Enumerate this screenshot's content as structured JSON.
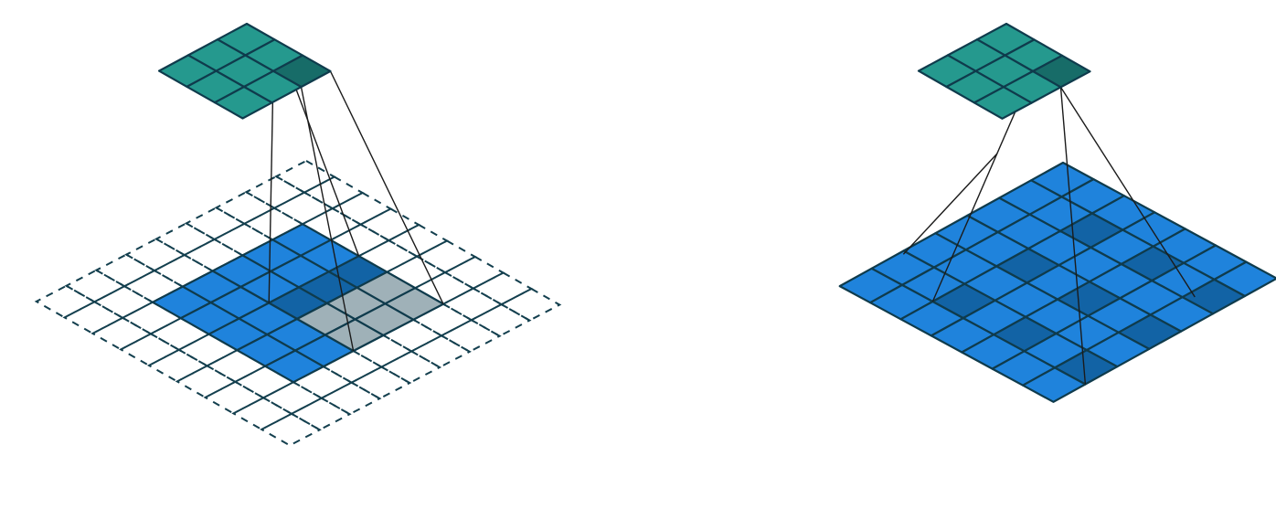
{
  "colors": {
    "teal_cell": "#25998e",
    "teal_highlight": "#176c68",
    "blue_cell": "#1f83dc",
    "blue_highlight": "#1263a5",
    "gray_cell": "#9fb1b8",
    "grid_line": "#0f3b4c",
    "dashed_line": "#133f4e",
    "projection_line": "#1b1b1b",
    "background": "#ffffff"
  },
  "panels": [
    {
      "name": "padded-convolution",
      "output_grid": {
        "rows": 3,
        "cols": 3,
        "highlight": [
          [
            0,
            2
          ]
        ]
      },
      "input_grid": {
        "rows": 5,
        "cols": 5,
        "padding": 2
      },
      "kernel": {
        "size": 3,
        "row": 2,
        "col": 4,
        "gray_cells": [
          [
            2,
            5
          ],
          [
            2,
            6
          ],
          [
            3,
            5
          ],
          [
            3,
            6
          ],
          [
            4,
            5
          ],
          [
            4,
            6
          ]
        ]
      }
    },
    {
      "name": "dilated-convolution",
      "output_grid": {
        "rows": 3,
        "cols": 3,
        "highlight": [
          [
            0,
            2
          ]
        ]
      },
      "input_grid": {
        "rows": 7,
        "cols": 7,
        "highlight": [
          [
            1,
            2
          ],
          [
            1,
            4
          ],
          [
            1,
            6
          ],
          [
            3,
            2
          ],
          [
            3,
            4
          ],
          [
            3,
            6
          ],
          [
            5,
            2
          ],
          [
            5,
            4
          ],
          [
            5,
            6
          ]
        ]
      },
      "kernel": {
        "size": 3,
        "dilation": 2
      }
    }
  ]
}
